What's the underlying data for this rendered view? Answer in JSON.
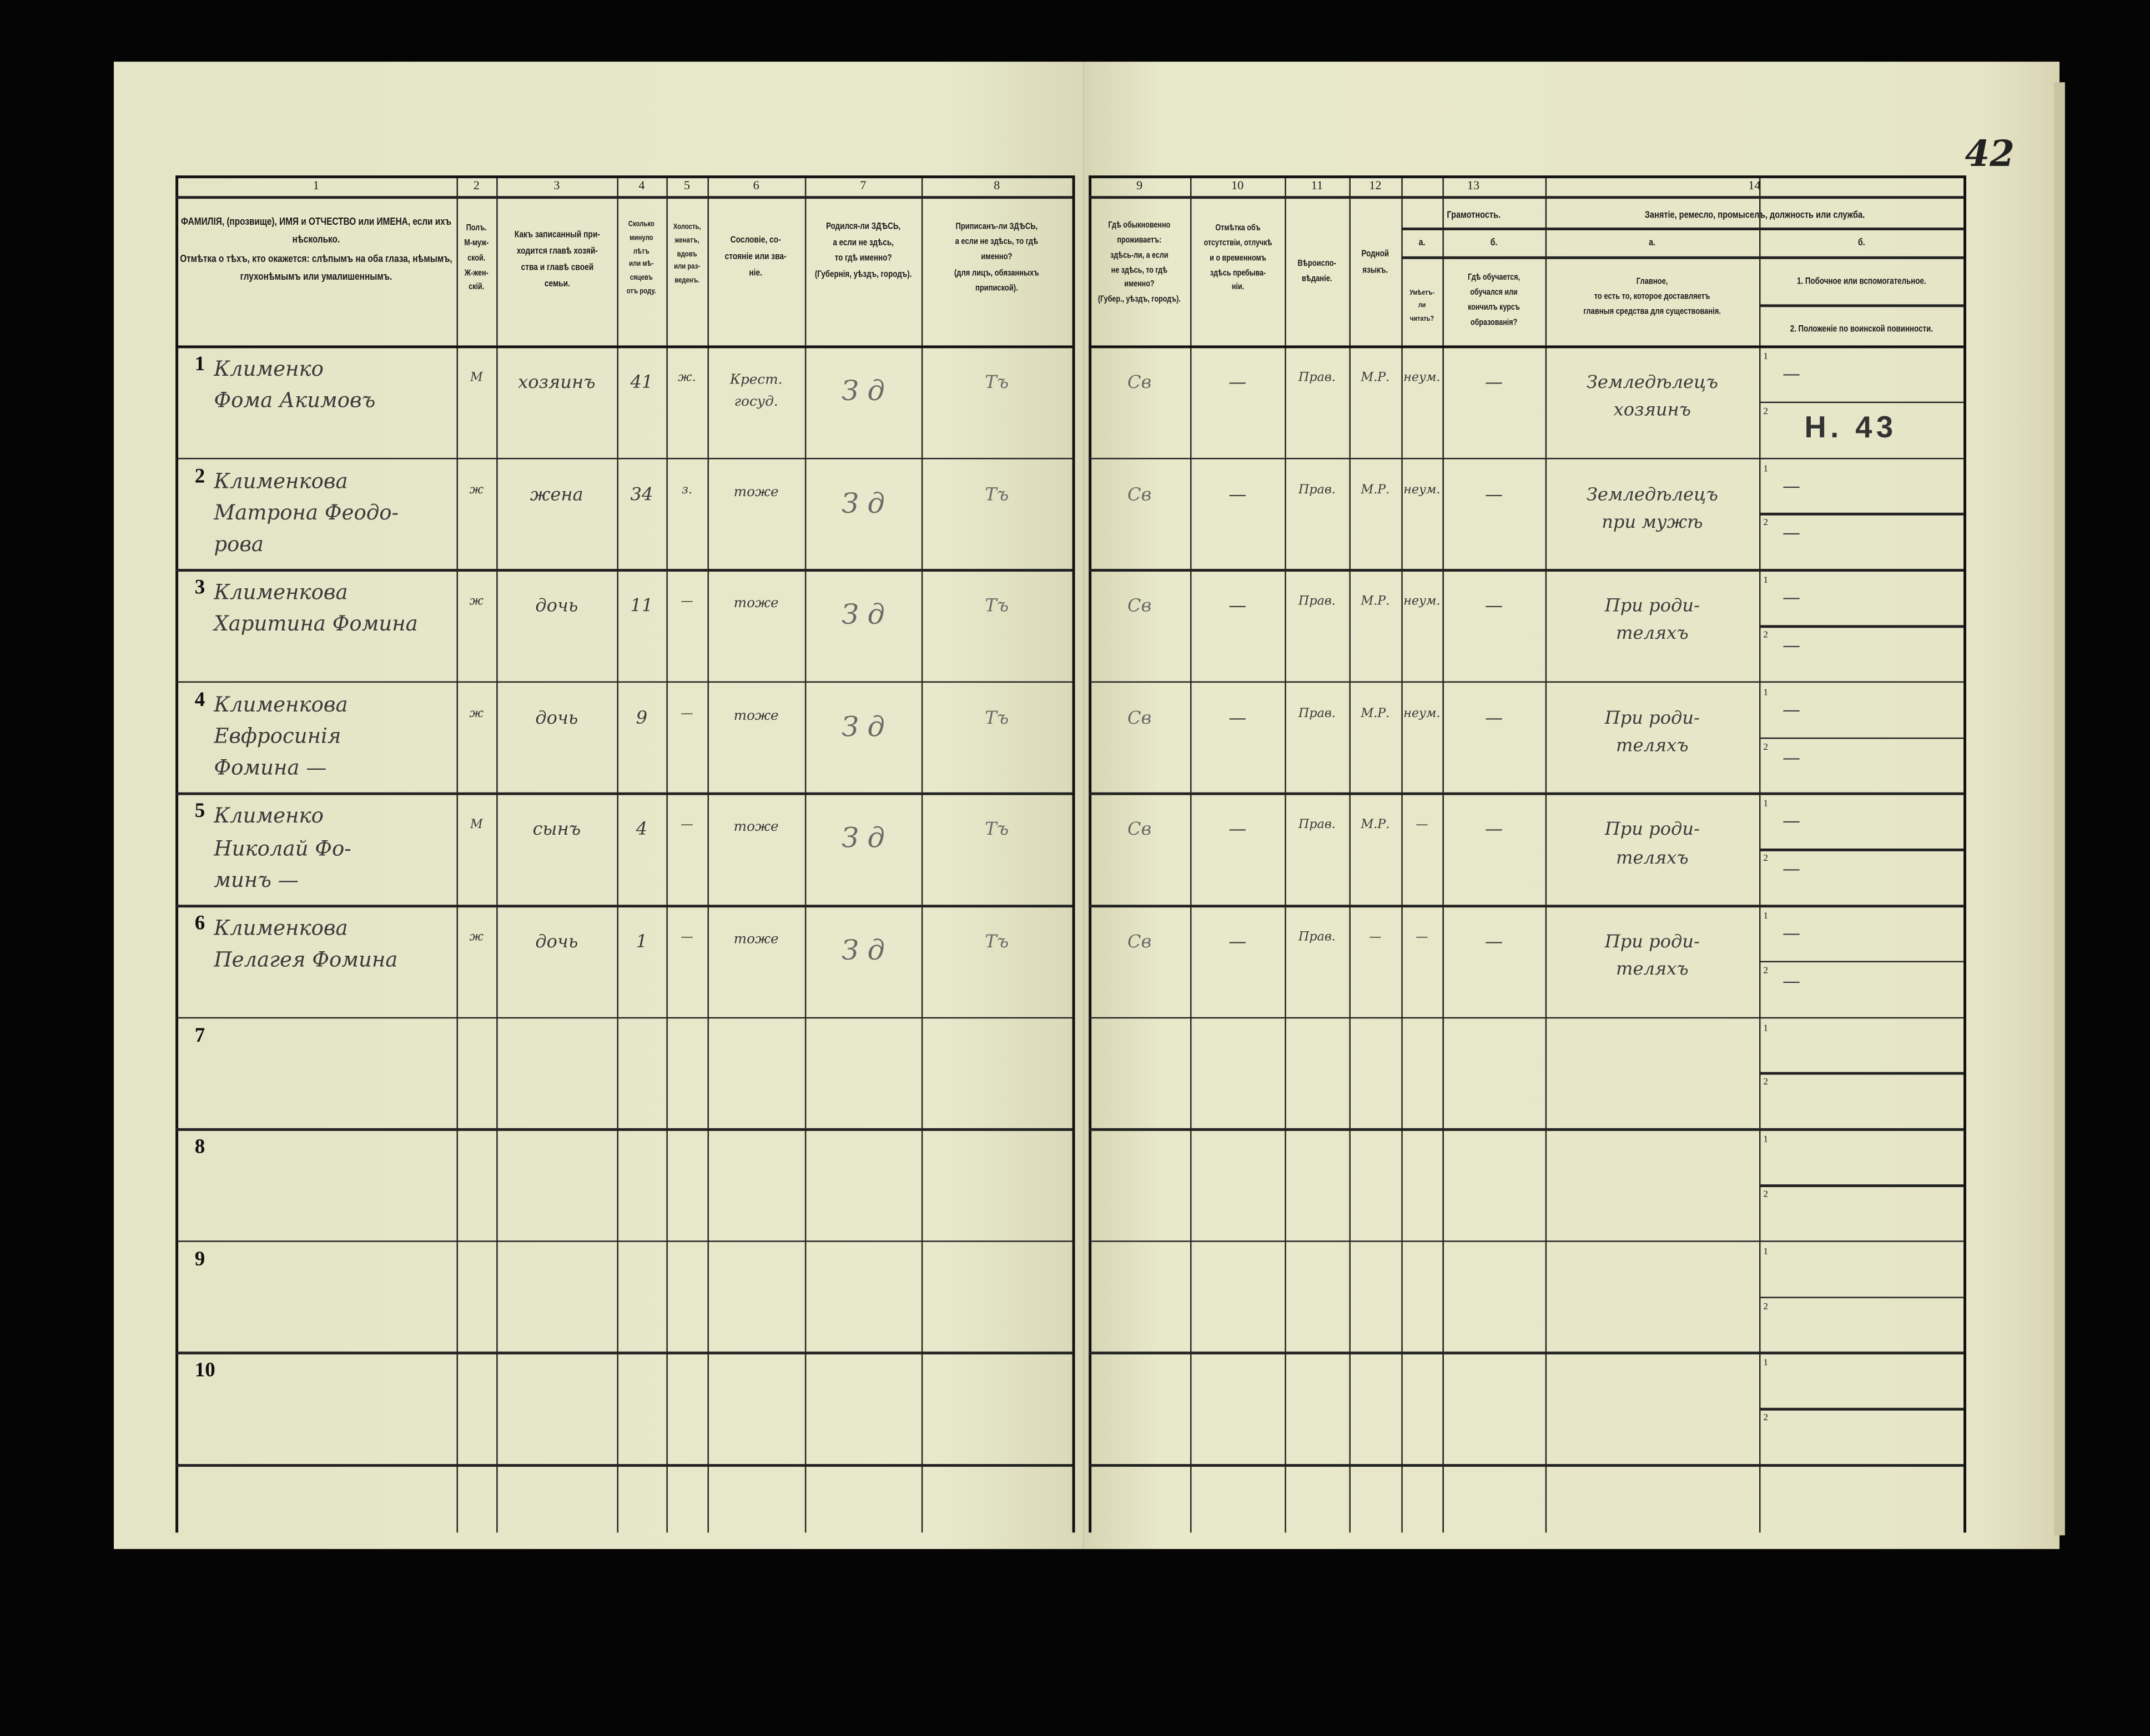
{
  "page_number": "42",
  "column_numbers": [
    "1",
    "2",
    "3",
    "4",
    "5",
    "6",
    "7",
    "8",
    "9",
    "10",
    "11",
    "12",
    "13",
    "14"
  ],
  "headers": {
    "c1": "ФАМИЛІЯ, (прозвище), ИМЯ и ОТЧЕСТВО или ИМЕНА, если ихъ нѣсколько.\nОтмѣтка о тѣхъ, кто окажется: слѣпымъ на оба глаза, нѣмымъ, глухонѣмымъ или умалишеннымъ.",
    "c2": "Полъ.\nМ-муж-\nской.\nЖ-жен-\nскій.",
    "c3": "Какъ записанный при-\nходится главѣ хозяй-\nства и главѣ своей\nсемьи.",
    "c4": "Сколько\nминуло\nлѣтъ\nили мѣ-\nсяцевъ\nотъ роду.",
    "c5": "Холость,\nженатъ,\nвдовъ\nили раз-\nведенъ.",
    "c6": "Сословіе, со-\nстояніе или зва-\nніе.",
    "c7": "Родился-ли ЗДѢСЬ,\nа если не здѣсь,\nто гдѣ именно?\n(Губернія, уѣздъ, городъ).",
    "c8": "Приписанъ-ли ЗДѢСЬ,\nа если не здѣсь, то гдѣ\nименно?\n(для лицъ, обязанныхъ\nприпиской).",
    "c9": "Гдѣ обыкновенно\nпроживаетъ:\nздѣсь-ли, а если\nне здѣсь, то гдѣ\nименно?\n(Губер., уѣздъ, городъ).",
    "c10": "Отмѣтка объ\nотсутствіи, отлучкѣ\nи о временномъ\nздѣсь пребыва-\nніи.",
    "c11": "Вѣроиспо-\nвѣданіе.",
    "c12": "Родной\nязыкъ.",
    "c13": "Грамотность.",
    "c13a_letter": "а.",
    "c13a": "Умѣетъ-\nли\nчитать?",
    "c13b_letter": "б.",
    "c13b": "Гдѣ обучается,\nобучался или\nкончилъ курсъ\nобразованія?",
    "c14": "Занятіе, ремесло, промыселъ, должность или служба.",
    "c14a_letter": "а.",
    "c14a": "Главное,\nто есть то, которое доставляетъ\nглавныя средства для существованія.",
    "c14b_letter": "б.",
    "c14b1": "1. Побочное или вспомогательное.",
    "c14b2": "2. Положеніе по воинской повинности."
  },
  "sub_labels": [
    "1",
    "2"
  ],
  "rows": [
    {
      "n": "1",
      "name": "Клименко\nФома Акимовъ",
      "sex": "М",
      "relation": "хозяинъ",
      "age": "41",
      "marital": "ж.",
      "estate": "Крест.\nгосуд.",
      "born": "З д",
      "registered": "Тъ",
      "residence": "Св",
      "absence": "—",
      "religion": "Прав.",
      "language": "М.Р.",
      "literate": "неум.",
      "school": "—",
      "occupation": "Земледѣлецъ\nхозяинъ",
      "side1": "—",
      "side2": "Н. 43"
    },
    {
      "n": "2",
      "name": "Клименкова\nМатрона Феодо-\nрова",
      "sex": "ж",
      "relation": "жена",
      "age": "34",
      "marital": "з.",
      "estate": "тоже",
      "born": "З д",
      "registered": "Тъ",
      "residence": "Св",
      "absence": "—",
      "religion": "Прав.",
      "language": "М.Р.",
      "literate": "неум.",
      "school": "—",
      "occupation": "Земледѣлецъ\nпри мужѣ",
      "side1": "—",
      "side2": "—"
    },
    {
      "n": "3",
      "name": "Клименкова\nХаритина Фомина",
      "sex": "ж",
      "relation": "дочь",
      "age": "11",
      "marital": "—",
      "estate": "тоже",
      "born": "З д",
      "registered": "Тъ",
      "residence": "Св",
      "absence": "—",
      "religion": "Прав.",
      "language": "М.Р.",
      "literate": "неум.",
      "school": "—",
      "occupation": "При роди-\nтеляхъ",
      "side1": "—",
      "side2": "—"
    },
    {
      "n": "4",
      "name": "Клименкова\nЕвфросинія\nФомина —",
      "sex": "ж",
      "relation": "дочь",
      "age": "9",
      "marital": "—",
      "estate": "тоже",
      "born": "З д",
      "registered": "Тъ",
      "residence": "Св",
      "absence": "—",
      "religion": "Прав.",
      "language": "М.Р.",
      "literate": "неум.",
      "school": "—",
      "occupation": "При роди-\nтеляхъ",
      "side1": "—",
      "side2": "—"
    },
    {
      "n": "5",
      "name": "Клименко\nНиколай Фо-\nминъ —",
      "sex": "М",
      "relation": "сынъ",
      "age": "4",
      "marital": "—",
      "estate": "тоже",
      "born": "З д",
      "registered": "Тъ",
      "residence": "Св",
      "absence": "—",
      "religion": "Прав.",
      "language": "М.Р.",
      "literate": "—",
      "school": "—",
      "occupation": "При роди-\nтеляхъ",
      "side1": "—",
      "side2": "—"
    },
    {
      "n": "6",
      "name": "Клименкова\nПелагея Фомина",
      "sex": "ж",
      "relation": "дочь",
      "age": "1",
      "marital": "—",
      "estate": "тоже",
      "born": "З д",
      "registered": "Тъ",
      "residence": "Св",
      "absence": "—",
      "religion": "Прав.",
      "language": "—",
      "literate": "—",
      "school": "—",
      "occupation": "При роди-\nтеляхъ",
      "side1": "—",
      "side2": "—"
    },
    {
      "n": "7"
    },
    {
      "n": "8"
    },
    {
      "n": "9"
    },
    {
      "n": "10"
    }
  ]
}
